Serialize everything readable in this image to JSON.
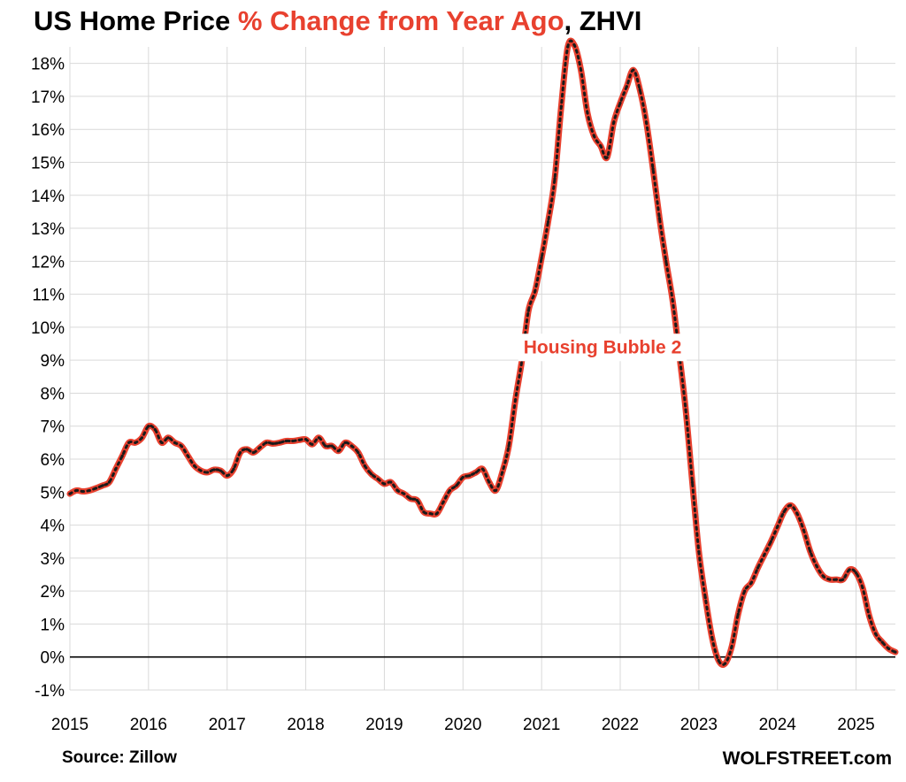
{
  "title": {
    "part1": "US Home Price ",
    "accent": "% Change from Year Ago",
    "part2": ", ZHVI"
  },
  "source": "Source: Zillow",
  "credit": "WOLFSTREET.com",
  "colors": {
    "line": "#e8412f",
    "dots": "#1a1a1a",
    "accent": "#e8412f",
    "grid": "#d9d9d9"
  },
  "chart_data": {
    "type": "line",
    "title": "US Home Price % Change from Year Ago, ZHVI",
    "xlabel": "",
    "ylabel": "",
    "xlim": [
      2015,
      2025.5
    ],
    "ylim": [
      -1,
      18.5
    ],
    "x_ticks": [
      2015,
      2016,
      2017,
      2018,
      2019,
      2020,
      2021,
      2022,
      2023,
      2024,
      2025
    ],
    "x_tick_labels": [
      "2015",
      "2016",
      "2017",
      "2018",
      "2019",
      "2020",
      "2021",
      "2022",
      "2023",
      "2024",
      "2025"
    ],
    "y_ticks": [
      -1,
      0,
      1,
      2,
      3,
      4,
      5,
      6,
      7,
      8,
      9,
      10,
      11,
      12,
      13,
      14,
      15,
      16,
      17,
      18
    ],
    "y_tick_labels": [
      "-1%",
      "0%",
      "1%",
      "2%",
      "3%",
      "4%",
      "5%",
      "6%",
      "7%",
      "8%",
      "9%",
      "10%",
      "11%",
      "12%",
      "13%",
      "14%",
      "15%",
      "16%",
      "17%",
      "18%"
    ],
    "grid": true,
    "legend": "none",
    "annotation": {
      "text": "Housing Bubble 2",
      "x": 2022.0,
      "y": 9.4
    },
    "series": [
      {
        "x": [
          2015.0,
          2015.083,
          2015.167,
          2015.25,
          2015.333,
          2015.417,
          2015.5,
          2015.583,
          2015.667,
          2015.75,
          2015.833,
          2015.917,
          2016.0,
          2016.083,
          2016.167,
          2016.25,
          2016.333,
          2016.417,
          2016.5,
          2016.583,
          2016.667,
          2016.75,
          2016.833,
          2016.917,
          2017.0,
          2017.083,
          2017.167,
          2017.25,
          2017.333,
          2017.417,
          2017.5,
          2017.583,
          2017.667,
          2017.75,
          2017.833,
          2017.917,
          2018.0,
          2018.083,
          2018.167,
          2018.25,
          2018.333,
          2018.417,
          2018.5,
          2018.583,
          2018.667,
          2018.75,
          2018.833,
          2018.917,
          2019.0,
          2019.083,
          2019.167,
          2019.25,
          2019.333,
          2019.417,
          2019.5,
          2019.583,
          2019.667,
          2019.75,
          2019.833,
          2019.917,
          2020.0,
          2020.083,
          2020.167,
          2020.25,
          2020.333,
          2020.417,
          2020.5,
          2020.583,
          2020.667,
          2020.75,
          2020.833,
          2020.917,
          2021.0,
          2021.083,
          2021.167,
          2021.25,
          2021.333,
          2021.417,
          2021.5,
          2021.583,
          2021.667,
          2021.75,
          2021.833,
          2021.917,
          2022.0,
          2022.083,
          2022.167,
          2022.25,
          2022.333,
          2022.417,
          2022.5,
          2022.583,
          2022.667,
          2022.75,
          2022.833,
          2022.917,
          2023.0,
          2023.083,
          2023.167,
          2023.25,
          2023.333,
          2023.417,
          2023.5,
          2023.583,
          2023.667,
          2023.75,
          2023.833,
          2023.917,
          2024.0,
          2024.083,
          2024.167,
          2024.25,
          2024.333,
          2024.417,
          2024.5,
          2024.583,
          2024.667,
          2024.75,
          2024.833,
          2024.917,
          2025.0,
          2025.083,
          2025.167,
          2025.25,
          2025.333,
          2025.417,
          2025.5
        ],
        "y": [
          4.95,
          5.05,
          5.02,
          5.05,
          5.12,
          5.2,
          5.3,
          5.7,
          6.1,
          6.5,
          6.5,
          6.65,
          7.0,
          6.9,
          6.5,
          6.65,
          6.5,
          6.4,
          6.1,
          5.8,
          5.65,
          5.6,
          5.68,
          5.65,
          5.5,
          5.7,
          6.2,
          6.3,
          6.2,
          6.35,
          6.5,
          6.47,
          6.5,
          6.55,
          6.55,
          6.58,
          6.6,
          6.45,
          6.65,
          6.4,
          6.4,
          6.25,
          6.5,
          6.4,
          6.2,
          5.8,
          5.55,
          5.4,
          5.25,
          5.3,
          5.05,
          4.95,
          4.8,
          4.75,
          4.4,
          4.35,
          4.35,
          4.7,
          5.05,
          5.2,
          5.45,
          5.5,
          5.6,
          5.7,
          5.3,
          5.05,
          5.6,
          6.4,
          7.8,
          9.0,
          10.5,
          11.1,
          12.1,
          13.2,
          14.5,
          16.7,
          18.5,
          18.55,
          17.8,
          16.5,
          15.8,
          15.5,
          15.15,
          16.2,
          16.8,
          17.3,
          17.8,
          17.2,
          16.2,
          14.8,
          13.3,
          12.0,
          10.8,
          9.2,
          7.5,
          5.3,
          3.2,
          1.8,
          0.6,
          -0.1,
          -0.2,
          0.3,
          1.3,
          2.0,
          2.25,
          2.7,
          3.1,
          3.5,
          3.95,
          4.4,
          4.6,
          4.35,
          3.85,
          3.2,
          2.75,
          2.45,
          2.35,
          2.35,
          2.35,
          2.65,
          2.55,
          2.1,
          1.25,
          0.7,
          0.45,
          0.25,
          0.15
        ]
      }
    ]
  }
}
